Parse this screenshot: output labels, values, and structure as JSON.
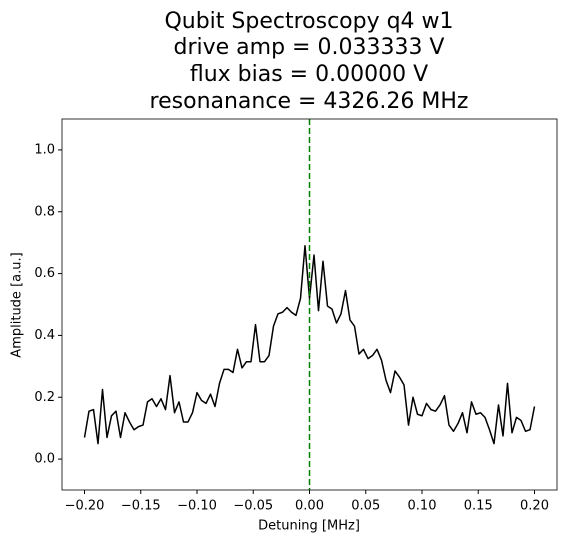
{
  "chart_data": {
    "type": "line",
    "title": [
      "Qubit Spectroscopy q4 w1",
      "drive amp = 0.033333 V",
      "flux bias = 0.00000 V",
      "resonanance = 4326.26 MHz"
    ],
    "xlabel": "Detuning [MHz]",
    "ylabel": "Amplitude [a.u.]",
    "x": [
      -0.2,
      -0.196,
      -0.192,
      -0.188,
      -0.184,
      -0.18,
      -0.176,
      -0.172,
      -0.168,
      -0.164,
      -0.16,
      -0.156,
      -0.152,
      -0.148,
      -0.144,
      -0.14,
      -0.136,
      -0.132,
      -0.128,
      -0.124,
      -0.12,
      -0.116,
      -0.112,
      -0.108,
      -0.104,
      -0.1,
      -0.096,
      -0.092,
      -0.088,
      -0.084,
      -0.08,
      -0.076,
      -0.072,
      -0.068,
      -0.064,
      -0.06,
      -0.056,
      -0.052,
      -0.048,
      -0.044,
      -0.04,
      -0.036,
      -0.032,
      -0.028,
      -0.024,
      -0.02,
      -0.016,
      -0.012,
      -0.008,
      -0.004,
      0,
      0.004,
      0.008,
      0.012,
      0.016,
      0.02,
      0.024,
      0.028,
      0.032,
      0.036,
      0.04,
      0.044,
      0.048,
      0.052,
      0.056,
      0.06,
      0.064,
      0.068,
      0.072,
      0.076,
      0.08,
      0.084,
      0.088,
      0.092,
      0.096,
      0.1,
      0.104,
      0.108,
      0.112,
      0.116,
      0.12,
      0.124,
      0.128,
      0.132,
      0.136,
      0.14,
      0.144,
      0.148,
      0.152,
      0.156,
      0.16,
      0.164,
      0.168,
      0.172,
      0.176,
      0.18,
      0.184,
      0.188,
      0.192,
      0.196,
      0.2
    ],
    "series": [
      {
        "color": "#000000",
        "values": [
          0.07,
          0.155,
          0.16,
          0.05,
          0.225,
          0.07,
          0.14,
          0.155,
          0.07,
          0.15,
          0.12,
          0.095,
          0.105,
          0.11,
          0.185,
          0.195,
          0.17,
          0.195,
          0.16,
          0.27,
          0.15,
          0.185,
          0.12,
          0.12,
          0.15,
          0.215,
          0.19,
          0.18,
          0.21,
          0.17,
          0.245,
          0.29,
          0.29,
          0.28,
          0.355,
          0.295,
          0.315,
          0.315,
          0.435,
          0.315,
          0.315,
          0.335,
          0.43,
          0.47,
          0.475,
          0.49,
          0.475,
          0.465,
          0.52,
          0.69,
          0.52,
          0.66,
          0.48,
          0.64,
          0.495,
          0.485,
          0.44,
          0.47,
          0.545,
          0.45,
          0.43,
          0.34,
          0.355,
          0.325,
          0.335,
          0.355,
          0.32,
          0.255,
          0.215,
          0.285,
          0.265,
          0.24,
          0.11,
          0.2,
          0.145,
          0.14,
          0.18,
          0.16,
          0.155,
          0.175,
          0.205,
          0.11,
          0.09,
          0.115,
          0.15,
          0.085,
          0.185,
          0.145,
          0.15,
          0.135,
          0.095,
          0.05,
          0.175,
          0.075,
          0.245,
          0.085,
          0.135,
          0.125,
          0.09,
          0.095,
          0.17
        ]
      }
    ],
    "vline": {
      "x": 0,
      "color": "#008000"
    },
    "xlim": [
      -0.22,
      0.22
    ],
    "ylim": [
      -0.1,
      1.1
    ],
    "xticks": [
      {
        "value": -0.2,
        "label": "−0.20"
      },
      {
        "value": -0.15,
        "label": "−0.15"
      },
      {
        "value": -0.1,
        "label": "−0.10"
      },
      {
        "value": -0.05,
        "label": "−0.05"
      },
      {
        "value": 0,
        "label": "0.00"
      },
      {
        "value": 0.05,
        "label": "0.05"
      },
      {
        "value": 0.1,
        "label": "0.10"
      },
      {
        "value": 0.15,
        "label": "0.15"
      },
      {
        "value": 0.2,
        "label": "0.20"
      }
    ],
    "yticks": [
      {
        "value": 0,
        "label": "0.0"
      },
      {
        "value": 0.2,
        "label": "0.2"
      },
      {
        "value": 0.4,
        "label": "0.4"
      },
      {
        "value": 0.6,
        "label": "0.6"
      },
      {
        "value": 0.8,
        "label": "0.8"
      },
      {
        "value": 1,
        "label": "1.0"
      }
    ]
  }
}
